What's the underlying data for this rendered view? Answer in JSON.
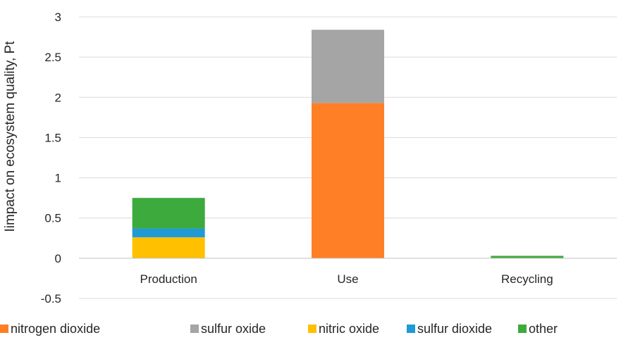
{
  "chart_data": {
    "type": "bar",
    "stacked": true,
    "categories": [
      "Production",
      "Use",
      "Recycling"
    ],
    "ylabel": "Iimpact on ecosystem quality, Pt",
    "xlabel": "",
    "ylim": [
      -0.5,
      3
    ],
    "yticks": [
      "-0.5",
      "0",
      "0.5",
      "1",
      "1.5",
      "2",
      "2.5",
      "3"
    ],
    "ytick_values": [
      -0.5,
      0,
      0.5,
      1,
      1.5,
      2,
      2.5,
      3
    ],
    "grid": true,
    "legend_position": "bottom",
    "series": [
      {
        "name": "nitrogen dioxide",
        "color": "#FF7F27",
        "values": [
          0,
          1.93,
          0
        ]
      },
      {
        "name": "sulfur oxide",
        "color": "#A5A5A5",
        "values": [
          0,
          0.91,
          0
        ]
      },
      {
        "name": "nitric oxide",
        "color": "#FFC000",
        "values": [
          0.26,
          0,
          0
        ]
      },
      {
        "name": "sulfur dioxide",
        "color": "#1F9AD6",
        "values": [
          0.11,
          0,
          0
        ]
      },
      {
        "name": "other",
        "color": "#3DAA3D",
        "values": [
          0.38,
          0,
          0.03
        ]
      }
    ]
  }
}
